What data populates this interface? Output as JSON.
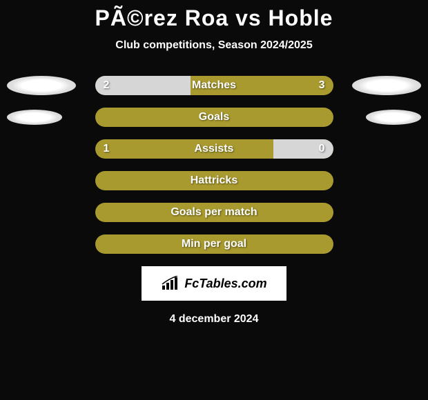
{
  "title": "PÃ©rez Roa vs Hoble",
  "subtitle": "Club competitions, Season 2024/2025",
  "date": "4 december 2024",
  "logo_text": "FcTables.com",
  "colors": {
    "background": "#0a0a0a",
    "bar_base": "#a89a2e",
    "bar_segment": "#d6d6d6",
    "text": "#ffffff",
    "avatar": "#ffffff"
  },
  "stats": [
    {
      "label": "Matches",
      "left_value": "2",
      "right_value": "3",
      "left_pct": 40,
      "right_pct": 0,
      "show_left_avatar": true,
      "show_right_avatar": true,
      "avatar_large": true
    },
    {
      "label": "Goals",
      "left_value": "",
      "right_value": "",
      "left_pct": 0,
      "right_pct": 0,
      "show_left_avatar": true,
      "show_right_avatar": true,
      "avatar_large": false
    },
    {
      "label": "Assists",
      "left_value": "1",
      "right_value": "0",
      "left_pct": 0,
      "right_pct": 25,
      "show_left_avatar": false,
      "show_right_avatar": false,
      "avatar_large": false
    },
    {
      "label": "Hattricks",
      "left_value": "",
      "right_value": "",
      "left_pct": 0,
      "right_pct": 0,
      "show_left_avatar": false,
      "show_right_avatar": false,
      "avatar_large": false
    },
    {
      "label": "Goals per match",
      "left_value": "",
      "right_value": "",
      "left_pct": 0,
      "right_pct": 0,
      "show_left_avatar": false,
      "show_right_avatar": false,
      "avatar_large": false
    },
    {
      "label": "Min per goal",
      "left_value": "",
      "right_value": "",
      "left_pct": 0,
      "right_pct": 0,
      "show_left_avatar": false,
      "show_right_avatar": false,
      "avatar_large": false
    }
  ]
}
